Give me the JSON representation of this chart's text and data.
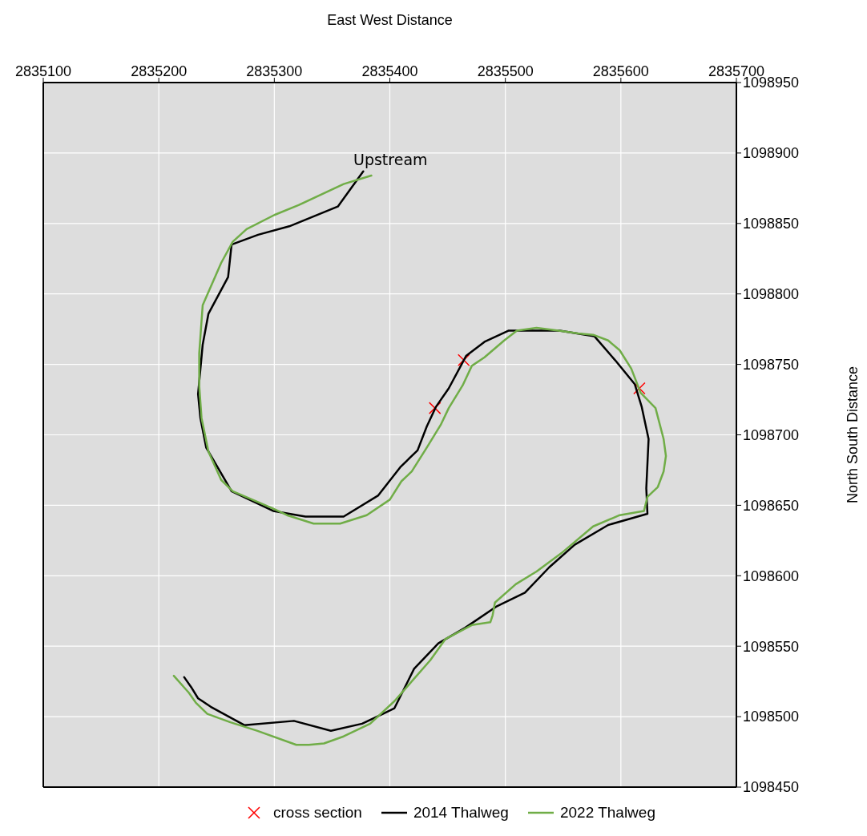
{
  "chart_data": {
    "type": "line",
    "xlabel": "East West Distance",
    "ylabel": "North South Distance",
    "xlim": [
      2835100,
      2835700
    ],
    "xticks": [
      2835100,
      2835200,
      2835300,
      2835400,
      2835500,
      2835600,
      2835700
    ],
    "ylim": [
      1098450,
      1098950
    ],
    "yticks": [
      1098450,
      1098500,
      1098550,
      1098600,
      1098650,
      1098700,
      1098750,
      1098800,
      1098850,
      1098900,
      1098950
    ],
    "grid": true,
    "legend": "bottom",
    "annotations": [
      "Upstream"
    ],
    "series": [
      {
        "name": "cross section",
        "type": "scatter",
        "marker": "cross",
        "color": "#ff0000",
        "x": [
          2835439,
          2835464,
          2835616
        ],
        "values": [
          1098719,
          1098753,
          1098733
        ]
      },
      {
        "name": "2014 Thalweg",
        "marker": "none",
        "color": "#000000",
        "x": [
          2835377,
          2835355,
          2835313,
          2835286,
          2835263,
          2835260,
          2835243,
          2835238,
          2835234,
          2835236,
          2835241,
          2835263,
          2835299,
          2835327,
          2835360,
          2835390,
          2835409,
          2835424,
          2835432,
          2835440,
          2835451,
          2835466,
          2835482,
          2835503,
          2835525,
          2835547,
          2835577,
          2835595,
          2835612,
          2835618,
          2835624,
          2835622,
          2835623,
          2835589,
          2835560,
          2835538,
          2835517,
          2835492,
          2835465,
          2835442,
          2835421,
          2835404,
          2835394,
          2835376,
          2835349,
          2835317,
          2835274,
          2835245,
          2835234,
          2835228,
          2835222
        ],
        "values": [
          1098887,
          1098862,
          1098848,
          1098842,
          1098835,
          1098812,
          1098786,
          1098764,
          1098729,
          1098712,
          1098691,
          1098660,
          1098646,
          1098642,
          1098642,
          1098657,
          1098677,
          1098689,
          1098706,
          1098720,
          1098733,
          1098756,
          1098766,
          1098774,
          1098774,
          1098774,
          1098770,
          1098753,
          1098736,
          1098720,
          1098697,
          1098662,
          1098644,
          1098636,
          1098622,
          1098606,
          1098588,
          1098578,
          1098563,
          1098552,
          1098534,
          1098506,
          1098502,
          1098495,
          1098490,
          1098497,
          1098494,
          1098507,
          1098513,
          1098521,
          1098528
        ]
      },
      {
        "name": "2022 Thalweg",
        "marker": "none",
        "color": "#70ad47",
        "x": [
          2835384,
          2835360,
          2835321,
          2835300,
          2835276,
          2835264,
          2835254,
          2835238,
          2835235,
          2835235,
          2835237,
          2835243,
          2835254,
          2835264,
          2835298,
          2835311,
          2835334,
          2835357,
          2835380,
          2835400,
          2835410,
          2835419,
          2835432,
          2835444,
          2835451,
          2835463,
          2835471,
          2835482,
          2835499,
          2835510,
          2835527,
          2835546,
          2835563,
          2835576,
          2835589,
          2835599,
          2835609,
          2835617,
          2835630,
          2835637,
          2835639,
          2835637,
          2835632,
          2835623,
          2835620,
          2835599,
          2835576,
          2835550,
          2835527,
          2835509,
          2835491,
          2835489,
          2835487,
          2835471,
          2835448,
          2835435,
          2835420,
          2835404,
          2835383,
          2835360,
          2835343,
          2835330,
          2835319,
          2835285,
          2835262,
          2835242,
          2835232,
          2835226,
          2835213
        ],
        "values": [
          1098884,
          1098878,
          1098863,
          1098856,
          1098846,
          1098837,
          1098822,
          1098792,
          1098758,
          1098735,
          1098712,
          1098688,
          1098668,
          1098660,
          1098648,
          1098643,
          1098637,
          1098637,
          1098643,
          1098654,
          1098667,
          1098674,
          1098691,
          1098707,
          1098719,
          1098735,
          1098749,
          1098755,
          1098767,
          1098774,
          1098776,
          1098774,
          1098772,
          1098771,
          1098767,
          1098760,
          1098747,
          1098730,
          1098719,
          1098697,
          1098685,
          1098674,
          1098663,
          1098656,
          1098646,
          1098643,
          1098635,
          1098617,
          1098603,
          1098594,
          1098581,
          1098572,
          1098567,
          1098565,
          1098555,
          1098540,
          1098526,
          1098511,
          1098495,
          1098486,
          1098481,
          1098480,
          1098480,
          1098490,
          1098496,
          1098502,
          1098510,
          1098517,
          1098529
        ]
      }
    ]
  }
}
